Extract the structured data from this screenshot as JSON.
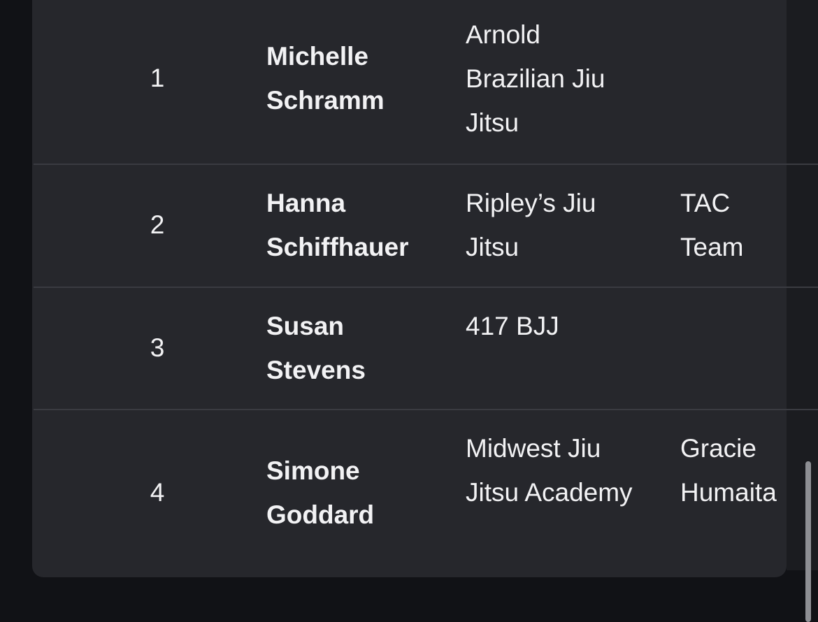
{
  "table": {
    "rows": [
      {
        "rank": "1",
        "name": "Michelle Schramm",
        "academy": "Arnold Brazilian Jiu Jitsu",
        "team": ""
      },
      {
        "rank": "2",
        "name": "Hanna Schiffhauer",
        "academy": "Ripley’s Jiu Jitsu",
        "team": "TAC Team"
      },
      {
        "rank": "3",
        "name": "Susan Stevens",
        "academy": "417 BJJ",
        "team": ""
      },
      {
        "rank": "4",
        "name": "Simone Goddard",
        "academy": "Midwest Jiu Jitsu Academy",
        "team": "Gracie Humaita"
      }
    ]
  },
  "colors": {
    "background": "#111216",
    "card": "#26272c",
    "divider": "#3a3b41",
    "text": "#f2f2f4"
  }
}
